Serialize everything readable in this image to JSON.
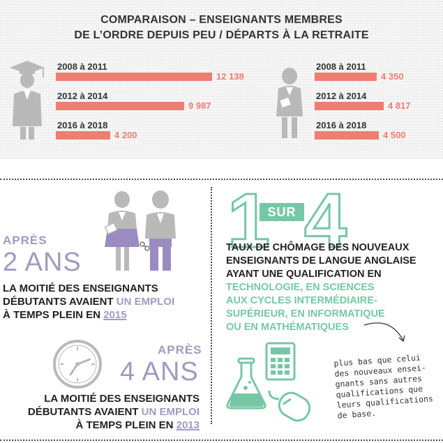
{
  "header": {
    "title_line1": "COMPARAISON – ENSEIGNANTS MEMBRES",
    "title_line2": "DE L’ORDRE DEPUIS PEU / DÉPARTS À LA RETRAITE"
  },
  "chart_data": [
    {
      "type": "bar",
      "categories": [
        "2008 à 2011",
        "2012 à 2014",
        "2016 à 2018"
      ],
      "values": [
        12138,
        9987,
        4200
      ],
      "value_labels": [
        "12 138",
        "9 987",
        "4 200"
      ],
      "color": "#ee7d72",
      "icon": "graduate-icon"
    },
    {
      "type": "bar",
      "categories": [
        "2008 à 2011",
        "2012 à 2014",
        "2016 à 2018"
      ],
      "values": [
        4350,
        4817,
        4500
      ],
      "value_labels": [
        "4 350",
        "4 817",
        "4 500"
      ],
      "color": "#ee7d72",
      "icon": "retiree-icon"
    }
  ],
  "left": {
    "block1": {
      "apres": "APRÈS",
      "years": "2 ANS",
      "line1": "LA MOITIÉ DES ENSEIGNANTS",
      "line2_plain": "DÉBUTANTS AVAIENT ",
      "line2_accent": "UN EMPLOI",
      "line3_plain": "À TEMPS PLEIN EN ",
      "line3_year": "2015"
    },
    "block2": {
      "apres": "APRÈS",
      "years": "4 ANS",
      "line1": "LA MOITIÉ DES ENSEIGNANTS",
      "line2_plain": "DÉBUTANTS AVAIENT ",
      "line2_accent": "UN EMPLOI",
      "line3_plain": "À TEMPS PLEIN EN ",
      "line3_year": "2013"
    }
  },
  "right": {
    "ratio_num": "1",
    "ratio_word": "SUR",
    "ratio_den": "4",
    "stmt_lines": [
      "TAUX DE CHÔMAGE DES NOUVEAUX",
      "ENSEIGNANTS DE LANGUE ANGLAISE",
      "AYANT UNE QUALIFICATION EN"
    ],
    "stmt_green_lines": [
      "TECHNOLOGIE, EN SCIENCES",
      "AUX CYCLES INTERMÉDIAIRE-",
      "SUPÉRIEUR, EN INFORMATIQUE",
      "OU EN MATHÉMATIQUES"
    ],
    "note_lines": [
      "plus bas que celui",
      "des nouveaux ensei-",
      "gnants sans autres",
      "qualifications que",
      "leurs qualifications",
      "de base."
    ]
  },
  "colors": {
    "accent_coral": "#ee7d72",
    "accent_purple": "#a399bf",
    "accent_green": "#76c7a5",
    "icon_gray": "#b9b9b9"
  }
}
